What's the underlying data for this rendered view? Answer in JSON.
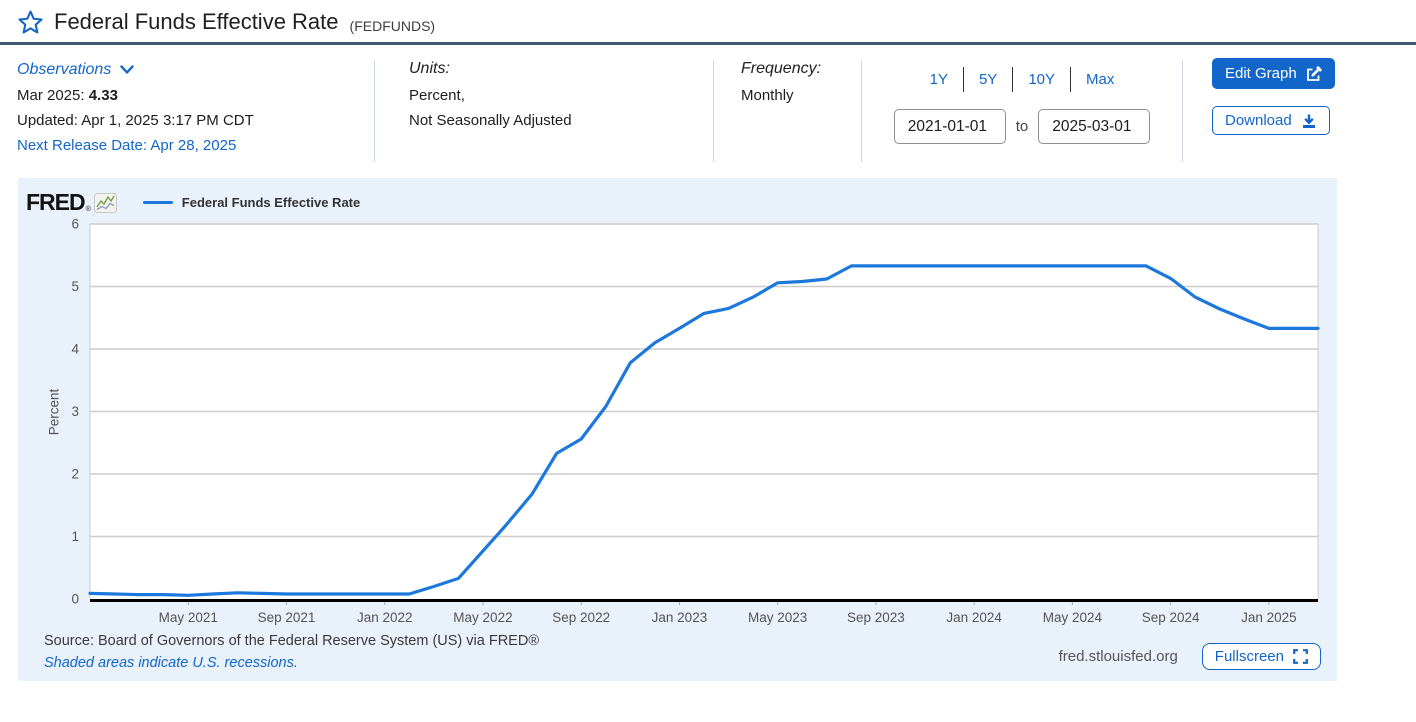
{
  "header": {
    "title": "Federal Funds Effective Rate",
    "series_id": "(FEDFUNDS)"
  },
  "observations": {
    "label": "Observations",
    "latest_label": "Mar 2025:",
    "latest_value": "4.33",
    "updated": "Updated: Apr 1, 2025 3:17 PM CDT",
    "next_release": "Next Release Date: Apr 28, 2025"
  },
  "units": {
    "label": "Units:",
    "line1": "Percent,",
    "line2": "Not Seasonally Adjusted"
  },
  "frequency": {
    "label": "Frequency:",
    "value": "Monthly"
  },
  "range": {
    "buttons": [
      "1Y",
      "5Y",
      "10Y",
      "Max"
    ],
    "start": "2021-01-01",
    "to": "to",
    "end": "2025-03-01"
  },
  "actions": {
    "edit_graph": "Edit Graph",
    "download": "Download"
  },
  "chart": {
    "brand": "FRED",
    "brand_reg": "®",
    "legend": "Federal Funds Effective Rate",
    "ylabel": "Percent"
  },
  "footer": {
    "source": "Source: Board of Governors of the Federal Reserve System (US) via FRED®",
    "recessions": "Shaded areas indicate U.S. recessions.",
    "site": "fred.stlouisfed.org",
    "fullscreen": "Fullscreen"
  },
  "icons": {
    "favorite": "star-outline",
    "observations_expand": "chevron-down",
    "edit_graph": "pencil-square",
    "download": "arrow-down-tray",
    "fullscreen": "corner-brackets",
    "fred_logo_mark": "sparkline-chart"
  },
  "colors": {
    "accent": "#1266c9",
    "line": "#1d78dd",
    "chart_bg": "#e9f1fa",
    "grid": "#cccccc",
    "axis": "#000000",
    "tick_text": "#555555",
    "x_tick_mark": "#9fb1bd",
    "title_divider": "#3d5a75"
  },
  "chart_data": {
    "type": "line",
    "title": "Federal Funds Effective Rate",
    "xlabel": "",
    "ylabel": "Percent",
    "ylim": [
      0,
      6
    ],
    "grid": true,
    "legend_position": "top-left",
    "series_name": "Federal Funds Effective Rate",
    "x": [
      "2021-01",
      "2021-02",
      "2021-03",
      "2021-04",
      "2021-05",
      "2021-06",
      "2021-07",
      "2021-08",
      "2021-09",
      "2021-10",
      "2021-11",
      "2021-12",
      "2022-01",
      "2022-02",
      "2022-03",
      "2022-04",
      "2022-05",
      "2022-06",
      "2022-07",
      "2022-08",
      "2022-09",
      "2022-10",
      "2022-11",
      "2022-12",
      "2023-01",
      "2023-02",
      "2023-03",
      "2023-04",
      "2023-05",
      "2023-06",
      "2023-07",
      "2023-08",
      "2023-09",
      "2023-10",
      "2023-11",
      "2023-12",
      "2024-01",
      "2024-02",
      "2024-03",
      "2024-04",
      "2024-05",
      "2024-06",
      "2024-07",
      "2024-08",
      "2024-09",
      "2024-10",
      "2024-11",
      "2024-12",
      "2025-01",
      "2025-02",
      "2025-03"
    ],
    "values": [
      0.09,
      0.08,
      0.07,
      0.07,
      0.06,
      0.08,
      0.1,
      0.09,
      0.08,
      0.08,
      0.08,
      0.08,
      0.08,
      0.08,
      0.2,
      0.33,
      0.77,
      1.21,
      1.68,
      2.33,
      2.56,
      3.08,
      3.78,
      4.1,
      4.33,
      4.57,
      4.65,
      4.83,
      5.06,
      5.08,
      5.12,
      5.33,
      5.33,
      5.33,
      5.33,
      5.33,
      5.33,
      5.33,
      5.33,
      5.33,
      5.33,
      5.33,
      5.33,
      5.33,
      5.13,
      4.83,
      4.64,
      4.48,
      4.33,
      4.33,
      4.33
    ],
    "y_ticks": [
      0,
      1,
      2,
      3,
      4,
      5,
      6
    ],
    "x_ticks": [
      {
        "i": 4,
        "label": "May 2021"
      },
      {
        "i": 8,
        "label": "Sep 2021"
      },
      {
        "i": 12,
        "label": "Jan 2022"
      },
      {
        "i": 16,
        "label": "May 2022"
      },
      {
        "i": 20,
        "label": "Sep 2022"
      },
      {
        "i": 24,
        "label": "Jan 2023"
      },
      {
        "i": 28,
        "label": "May 2023"
      },
      {
        "i": 32,
        "label": "Sep 2023"
      },
      {
        "i": 36,
        "label": "Jan 2024"
      },
      {
        "i": 40,
        "label": "May 2024"
      },
      {
        "i": 44,
        "label": "Sep 2024"
      },
      {
        "i": 48,
        "label": "Jan 2025"
      }
    ]
  }
}
